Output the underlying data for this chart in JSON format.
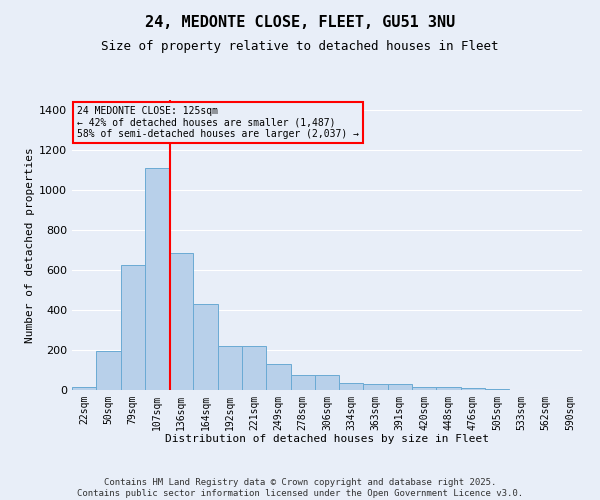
{
  "title1": "24, MEDONTE CLOSE, FLEET, GU51 3NU",
  "title2": "Size of property relative to detached houses in Fleet",
  "xlabel": "Distribution of detached houses by size in Fleet",
  "ylabel": "Number of detached properties",
  "categories": [
    "22sqm",
    "50sqm",
    "79sqm",
    "107sqm",
    "136sqm",
    "164sqm",
    "192sqm",
    "221sqm",
    "249sqm",
    "278sqm",
    "306sqm",
    "334sqm",
    "363sqm",
    "391sqm",
    "420sqm",
    "448sqm",
    "476sqm",
    "505sqm",
    "533sqm",
    "562sqm",
    "590sqm"
  ],
  "values": [
    15,
    195,
    625,
    1110,
    685,
    430,
    220,
    220,
    130,
    75,
    75,
    35,
    30,
    30,
    15,
    15,
    8,
    5,
    0,
    0,
    0
  ],
  "bar_color": "#b8d0ea",
  "bar_edge_color": "#6aaad4",
  "background_color": "#e8eef8",
  "grid_color": "#ffffff",
  "vline_color": "red",
  "vline_x": 3.55,
  "annotation_text": "24 MEDONTE CLOSE: 125sqm\n← 42% of detached houses are smaller (1,487)\n58% of semi-detached houses are larger (2,037) →",
  "annotation_box_color": "red",
  "ylim": [
    0,
    1450
  ],
  "yticks": [
    0,
    200,
    400,
    600,
    800,
    1000,
    1200,
    1400
  ],
  "footer1": "Contains HM Land Registry data © Crown copyright and database right 2025.",
  "footer2": "Contains public sector information licensed under the Open Government Licence v3.0.",
  "title1_fontsize": 11,
  "title2_fontsize": 9,
  "xlabel_fontsize": 8,
  "ylabel_fontsize": 8,
  "tick_fontsize": 7,
  "footer_fontsize": 6.5
}
